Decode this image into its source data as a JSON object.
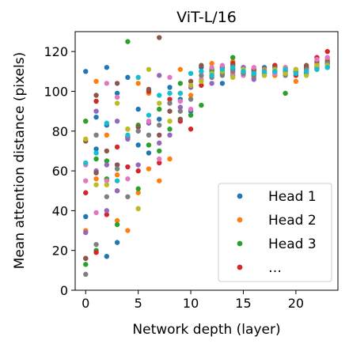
{
  "chart_data": {
    "type": "scatter",
    "title": "ViT-L/16",
    "xlabel": "Network depth (layer)",
    "ylabel": "Mean attention distance (pixels)",
    "xlim": [
      -1,
      24
    ],
    "ylim": [
      0,
      130
    ],
    "xticks": [
      0,
      5,
      10,
      15,
      20
    ],
    "yticks": [
      0,
      20,
      40,
      60,
      80,
      100,
      120
    ],
    "grid": false,
    "legend_placement": "lower-right",
    "series": [
      {
        "name": "Head 1",
        "color": "#1f77b4",
        "points": [
          [
            0,
            37
          ],
          [
            0,
            110
          ],
          [
            1,
            87
          ],
          [
            1,
            71
          ],
          [
            2,
            17
          ],
          [
            2,
            83
          ],
          [
            2,
            112
          ],
          [
            3,
            24
          ],
          [
            3,
            63
          ],
          [
            3,
            99
          ],
          [
            4,
            107
          ],
          [
            5,
            73
          ],
          [
            5,
            91
          ],
          [
            6,
            69
          ],
          [
            7,
            86
          ],
          [
            8,
            102
          ],
          [
            9,
            96
          ],
          [
            10,
            90
          ],
          [
            11,
            112
          ],
          [
            12,
            110
          ],
          [
            13,
            104
          ],
          [
            14,
            111
          ],
          [
            15,
            109
          ],
          [
            16,
            108
          ],
          [
            17,
            112
          ],
          [
            18,
            109
          ],
          [
            19,
            110
          ],
          [
            20,
            111
          ],
          [
            21,
            109
          ],
          [
            22,
            113
          ],
          [
            23,
            112
          ]
        ]
      },
      {
        "name": "Head 2",
        "color": "#ff7f0e",
        "points": [
          [
            0,
            30
          ],
          [
            0,
            85
          ],
          [
            1,
            56
          ],
          [
            1,
            105
          ],
          [
            2,
            78
          ],
          [
            3,
            35
          ],
          [
            3,
            58
          ],
          [
            4,
            30
          ],
          [
            5,
            49
          ],
          [
            5,
            104
          ],
          [
            6,
            61
          ],
          [
            6,
            99
          ],
          [
            7,
            55
          ],
          [
            8,
            66
          ],
          [
            9,
            111
          ],
          [
            10,
            98
          ],
          [
            11,
            108
          ],
          [
            12,
            114
          ],
          [
            13,
            112
          ],
          [
            14,
            115
          ],
          [
            15,
            110
          ],
          [
            16,
            107
          ],
          [
            17,
            111
          ],
          [
            18,
            108
          ],
          [
            19,
            112
          ],
          [
            20,
            105
          ],
          [
            21,
            110
          ],
          [
            22,
            114
          ],
          [
            23,
            116
          ]
        ]
      },
      {
        "name": "Head 3",
        "color": "#2ca02c",
        "points": [
          [
            0,
            13
          ],
          [
            0,
            85
          ],
          [
            1,
            20
          ],
          [
            1,
            66
          ],
          [
            2,
            56
          ],
          [
            2,
            65
          ],
          [
            3,
            33
          ],
          [
            3,
            50
          ],
          [
            4,
            125
          ],
          [
            5,
            51
          ],
          [
            5,
            83
          ],
          [
            6,
            73
          ],
          [
            7,
            70
          ],
          [
            7,
            91
          ],
          [
            8,
            81
          ],
          [
            9,
            104
          ],
          [
            10,
            88
          ],
          [
            11,
            93
          ],
          [
            12,
            111
          ],
          [
            13,
            109
          ],
          [
            14,
            117
          ],
          [
            15,
            112
          ],
          [
            16,
            110
          ],
          [
            17,
            109
          ],
          [
            18,
            113
          ],
          [
            19,
            99
          ],
          [
            20,
            110
          ],
          [
            21,
            112
          ],
          [
            22,
            111
          ],
          [
            23,
            114
          ]
        ]
      },
      {
        "name": "…",
        "color": "#d62728",
        "points": [
          [
            0,
            16
          ],
          [
            0,
            49
          ],
          [
            1,
            19
          ],
          [
            1,
            95
          ],
          [
            2,
            38
          ],
          [
            3,
            72
          ],
          [
            4,
            62
          ],
          [
            4,
            77
          ],
          [
            5,
            60
          ],
          [
            6,
            100
          ],
          [
            7,
            64
          ],
          [
            8,
            96
          ],
          [
            9,
            85
          ],
          [
            10,
            81
          ],
          [
            11,
            103
          ],
          [
            12,
            108
          ],
          [
            13,
            112
          ],
          [
            14,
            114
          ],
          [
            15,
            109
          ],
          [
            16,
            111
          ],
          [
            17,
            110
          ],
          [
            18,
            113
          ],
          [
            19,
            109
          ],
          [
            20,
            108
          ],
          [
            21,
            112
          ],
          [
            22,
            117
          ],
          [
            23,
            120
          ]
        ]
      },
      {
        "color": "#9467bd",
        "points": [
          [
            0,
            29
          ],
          [
            1,
            60
          ],
          [
            1,
            90
          ],
          [
            2,
            40
          ],
          [
            2,
            63
          ],
          [
            3,
            50
          ],
          [
            3,
            85
          ],
          [
            4,
            76
          ],
          [
            5,
            63
          ],
          [
            6,
            84
          ],
          [
            7,
            74
          ],
          [
            7,
            108
          ],
          [
            8,
            78
          ],
          [
            9,
            92
          ],
          [
            10,
            102
          ],
          [
            11,
            110
          ],
          [
            12,
            104
          ],
          [
            13,
            110
          ],
          [
            14,
            108
          ],
          [
            15,
            112
          ],
          [
            16,
            106
          ],
          [
            17,
            109
          ],
          [
            18,
            110
          ],
          [
            19,
            110
          ],
          [
            20,
            109
          ],
          [
            21,
            111
          ],
          [
            22,
            112
          ],
          [
            23,
            113
          ]
        ]
      },
      {
        "color": "#8c564b",
        "points": [
          [
            0,
            16
          ],
          [
            0,
            75
          ],
          [
            1,
            59
          ],
          [
            1,
            98
          ],
          [
            2,
            70
          ],
          [
            3,
            63
          ],
          [
            3,
            104
          ],
          [
            4,
            81
          ],
          [
            5,
            82
          ],
          [
            6,
            101
          ],
          [
            7,
            78
          ],
          [
            7,
            127
          ],
          [
            8,
            90
          ],
          [
            9,
            86
          ],
          [
            10,
            105
          ],
          [
            11,
            113
          ],
          [
            12,
            109
          ],
          [
            13,
            111
          ],
          [
            14,
            113
          ],
          [
            15,
            110
          ],
          [
            16,
            111
          ],
          [
            17,
            108
          ],
          [
            18,
            112
          ],
          [
            19,
            111
          ],
          [
            20,
            110
          ],
          [
            21,
            113
          ],
          [
            22,
            115
          ],
          [
            23,
            115
          ]
        ]
      },
      {
        "color": "#e377c2",
        "points": [
          [
            0,
            63
          ],
          [
            0,
            55
          ],
          [
            1,
            39
          ],
          [
            2,
            55
          ],
          [
            2,
            104
          ],
          [
            3,
            97
          ],
          [
            4,
            56
          ],
          [
            5,
            41
          ],
          [
            6,
            85
          ],
          [
            7,
            66
          ],
          [
            8,
            107
          ],
          [
            9,
            95
          ],
          [
            10,
            91
          ],
          [
            11,
            106
          ],
          [
            12,
            112
          ],
          [
            13,
            113
          ],
          [
            14,
            109
          ],
          [
            15,
            108
          ],
          [
            16,
            112
          ],
          [
            17,
            110
          ],
          [
            18,
            109
          ],
          [
            19,
            112
          ],
          [
            20,
            111
          ],
          [
            21,
            110
          ],
          [
            22,
            116
          ],
          [
            23,
            117
          ]
        ]
      },
      {
        "color": "#7f7f7f",
        "points": [
          [
            0,
            8
          ],
          [
            1,
            23
          ],
          [
            1,
            78
          ],
          [
            2,
            47
          ],
          [
            3,
            61
          ],
          [
            4,
            47
          ],
          [
            5,
            80
          ],
          [
            6,
            78
          ],
          [
            7,
            83
          ],
          [
            8,
            94
          ],
          [
            9,
            90
          ],
          [
            10,
            96
          ],
          [
            11,
            108
          ],
          [
            12,
            107
          ],
          [
            13,
            108
          ],
          [
            14,
            110
          ],
          [
            15,
            109
          ],
          [
            16,
            108
          ],
          [
            17,
            109
          ],
          [
            18,
            110
          ],
          [
            19,
            108
          ],
          [
            20,
            110
          ],
          [
            21,
            111
          ],
          [
            22,
            112
          ],
          [
            23,
            114
          ]
        ]
      },
      {
        "color": "#bcbd22",
        "points": [
          [
            0,
            76
          ],
          [
            1,
            53
          ],
          [
            2,
            53
          ],
          [
            3,
            94
          ],
          [
            4,
            81
          ],
          [
            5,
            41
          ],
          [
            6,
            111
          ],
          [
            7,
            94
          ],
          [
            8,
            85
          ],
          [
            9,
            99
          ],
          [
            10,
            103
          ],
          [
            11,
            105
          ],
          [
            12,
            109
          ],
          [
            13,
            110
          ],
          [
            14,
            107
          ],
          [
            15,
            111
          ],
          [
            16,
            109
          ],
          [
            17,
            108
          ],
          [
            18,
            111
          ],
          [
            19,
            109
          ],
          [
            20,
            111
          ],
          [
            21,
            108
          ],
          [
            22,
            113
          ],
          [
            23,
            113
          ]
        ]
      },
      {
        "color": "#17becf",
        "points": [
          [
            0,
            64
          ],
          [
            1,
            69
          ],
          [
            2,
            84
          ],
          [
            3,
            55
          ],
          [
            4,
            78
          ],
          [
            5,
            107
          ],
          [
            6,
            88
          ],
          [
            7,
            98
          ],
          [
            8,
            99
          ],
          [
            9,
            99
          ],
          [
            10,
            109
          ],
          [
            11,
            110
          ],
          [
            12,
            108
          ],
          [
            13,
            111
          ],
          [
            14,
            112
          ],
          [
            15,
            110
          ],
          [
            16,
            109
          ],
          [
            17,
            110
          ],
          [
            18,
            110
          ],
          [
            19,
            111
          ],
          [
            20,
            109
          ],
          [
            21,
            110
          ],
          [
            22,
            111
          ],
          [
            23,
            112
          ]
        ]
      }
    ]
  }
}
